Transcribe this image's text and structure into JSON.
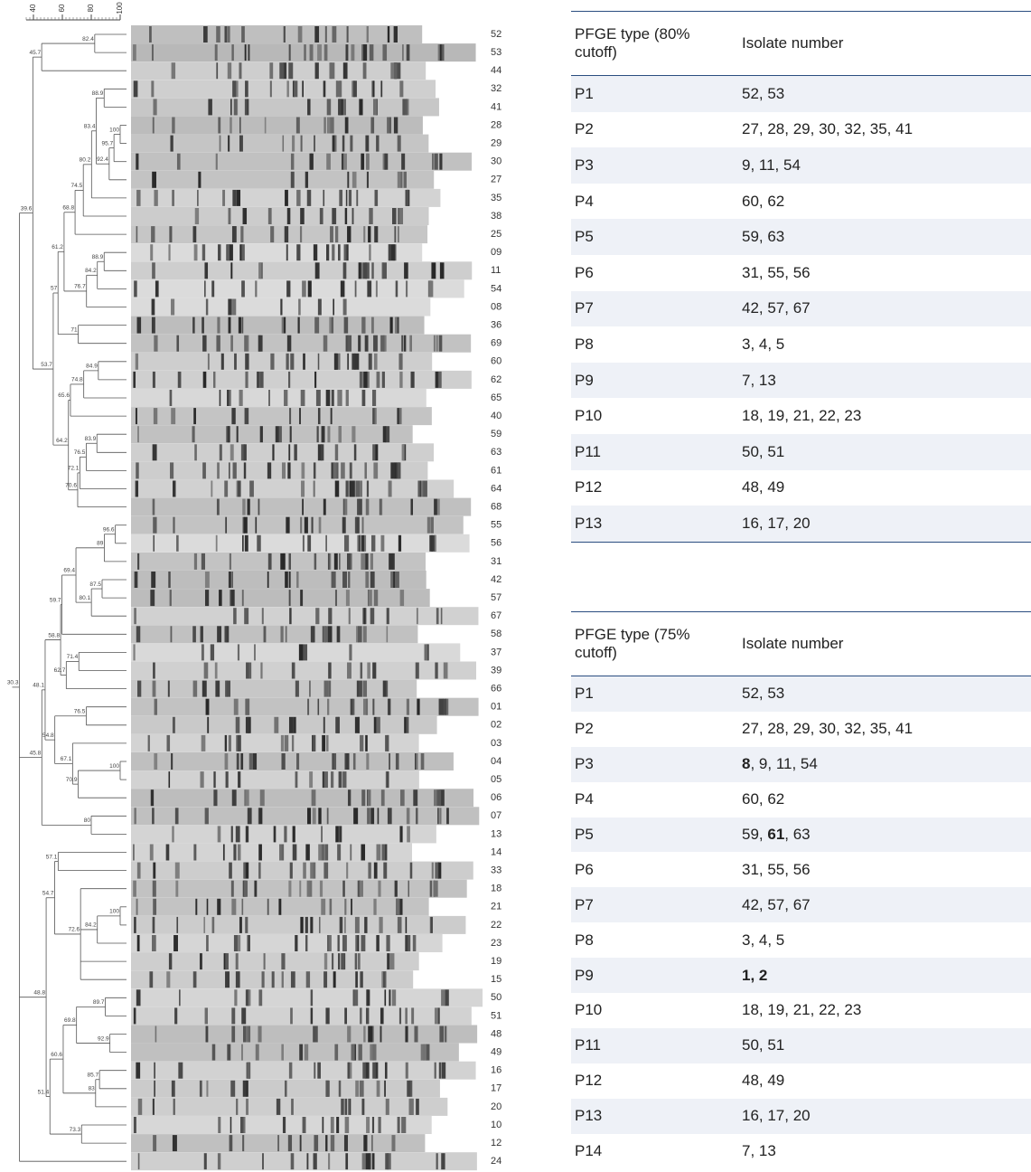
{
  "dendrogram": {
    "scale_ticks": [
      40,
      60,
      80,
      100
    ],
    "nodes": [
      82.4,
      45.7,
      88.9,
      100,
      95.7,
      92.4,
      83.4,
      80.2,
      74.5,
      68.8,
      88.9,
      84.2,
      76.7,
      61.2,
      71,
      57,
      84.9,
      74.8,
      65.6,
      83.9,
      76.5,
      72.1,
      70.6,
      64.2,
      53.7,
      39.6,
      96.6,
      89,
      87.5,
      80.1,
      69.4,
      59.7,
      71.4,
      62.7,
      58.8,
      76.5,
      100,
      70.9,
      67.1,
      54.8,
      48.1,
      80,
      45.8,
      57.1,
      100,
      84.2,
      72.6,
      54.7,
      89.7,
      92.9,
      69.8,
      85.7,
      83,
      60.6,
      73.3,
      51.4,
      48.8,
      30.3
    ],
    "isolates": [
      "52",
      "53",
      "44",
      "32",
      "41",
      "28",
      "29",
      "30",
      "27",
      "35",
      "38",
      "25",
      "09",
      "11",
      "54",
      "08",
      "36",
      "69",
      "60",
      "62",
      "65",
      "40",
      "59",
      "63",
      "61",
      "64",
      "68",
      "55",
      "56",
      "31",
      "42",
      "57",
      "67",
      "58",
      "37",
      "39",
      "66",
      "01",
      "02",
      "03",
      "04",
      "05",
      "06",
      "07",
      "13",
      "14",
      "33",
      "18",
      "21",
      "22",
      "23",
      "19",
      "15",
      "50",
      "51",
      "48",
      "49",
      "16",
      "17",
      "20",
      "10",
      "12",
      "24"
    ]
  },
  "tables": [
    {
      "headers": [
        "PFGE type (80% cutoff)",
        "Isolate number"
      ],
      "rows": [
        [
          "P1",
          "52, 53"
        ],
        [
          "P2",
          "27, 28, 29, 30, 32, 35, 41"
        ],
        [
          "P3",
          "9, 11, 54"
        ],
        [
          "P4",
          "60, 62"
        ],
        [
          "P5",
          "59, 63"
        ],
        [
          "P6",
          "31, 55, 56"
        ],
        [
          "P7",
          "42, 57, 67"
        ],
        [
          "P8",
          "3, 4, 5"
        ],
        [
          "P9",
          "7, 13"
        ],
        [
          "P10",
          "18, 19, 21, 22, 23"
        ],
        [
          "P11",
          "50, 51"
        ],
        [
          "P12",
          "48, 49"
        ],
        [
          "P13",
          "16, 17, 20"
        ]
      ]
    },
    {
      "headers": [
        "PFGE type (75% cutoff)",
        "Isolate number"
      ],
      "rows": [
        [
          "P1",
          "52, 53"
        ],
        [
          "P2",
          "27, 28, 29, 30, 32, 35, 41"
        ],
        [
          "P3",
          [
            {
              "text": "8",
              "bold": true
            },
            {
              "text": ", 9, 11, 54",
              "bold": false
            }
          ]
        ],
        [
          "P4",
          "60, 62"
        ],
        [
          "P5",
          [
            {
              "text": "59, ",
              "bold": false
            },
            {
              "text": "61",
              "bold": true
            },
            {
              "text": ", 63",
              "bold": false
            }
          ]
        ],
        [
          "P6",
          "31, 55, 56"
        ],
        [
          "P7",
          "42, 57, 67"
        ],
        [
          "P8",
          "3, 4, 5"
        ],
        [
          "P9",
          [
            {
              "text": "1, 2",
              "bold": true
            }
          ]
        ],
        [
          "P10",
          "18, 19, 21, 22, 23"
        ],
        [
          "P11",
          "50, 51"
        ],
        [
          "P12",
          "48, 49"
        ],
        [
          "P13",
          "16, 17, 20"
        ],
        [
          "P14",
          "7, 13"
        ]
      ]
    }
  ]
}
